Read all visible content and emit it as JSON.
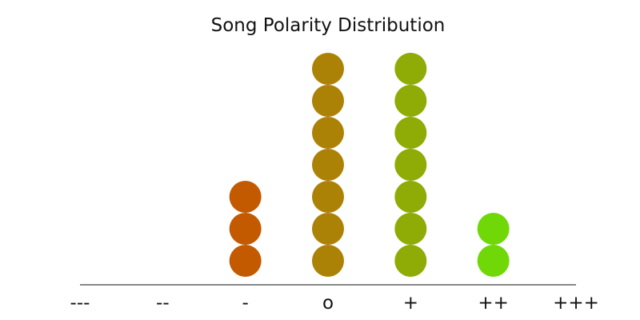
{
  "chart_data": {
    "type": "dot-plot",
    "title": "Song Polarity Distribution",
    "categories": [
      "---",
      "--",
      "-",
      "o",
      "+",
      "++",
      "+++"
    ],
    "values": [
      0,
      0,
      3,
      7,
      7,
      2,
      0
    ],
    "colors": [
      "#c35a00",
      "#c35a00",
      "#c35a00",
      "#ab8206",
      "#8fab06",
      "#6fd806",
      "#6fd806"
    ],
    "ylim": [
      0,
      7
    ],
    "grid": false,
    "legend": "none"
  }
}
